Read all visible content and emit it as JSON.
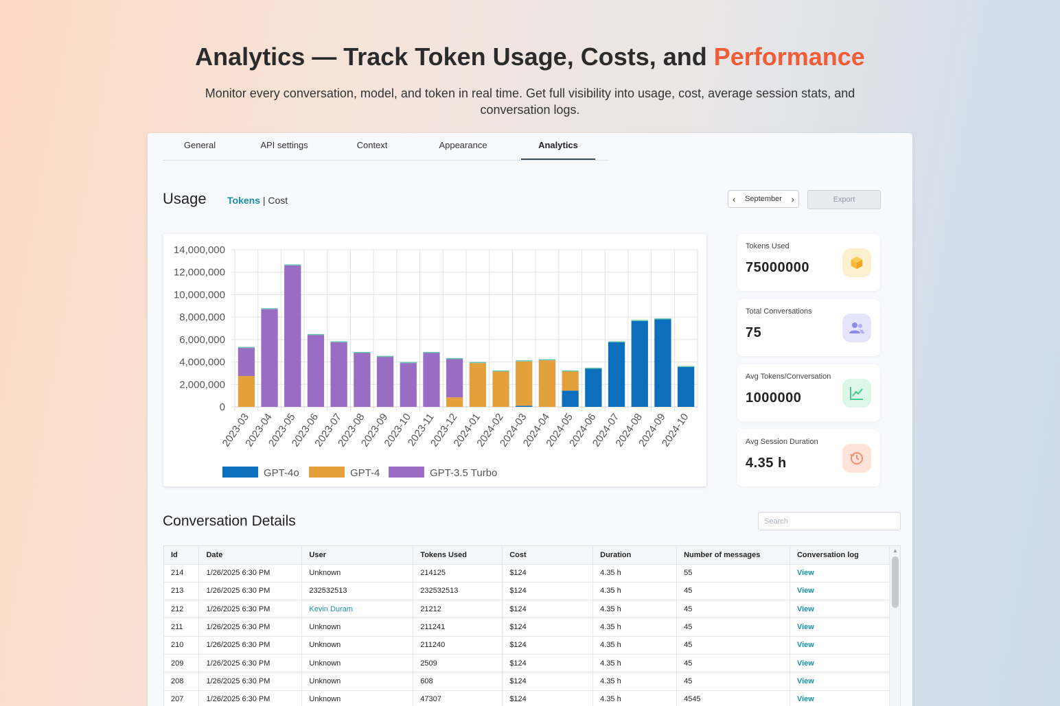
{
  "hero": {
    "title_main": "Analytics — Track Token Usage, Costs, and ",
    "title_accent": "Performance",
    "subtitle": "Monitor every conversation, model, and token in real time. Get full visibility into usage, cost, average session stats, and conversation logs."
  },
  "tabs": [
    {
      "label": "General",
      "active": false
    },
    {
      "label": "API settings",
      "active": false
    },
    {
      "label": "Context",
      "active": false
    },
    {
      "label": "Appearance",
      "active": false
    },
    {
      "label": "Analytics",
      "active": true
    }
  ],
  "usage": {
    "title": "Usage",
    "toggle_tokens": "Tokens",
    "separator": "|",
    "toggle_cost": "Cost",
    "month": "September",
    "export_label": "Export"
  },
  "stats": [
    {
      "label": "Tokens Used",
      "value": "75000000",
      "icon": "cube-icon",
      "icon_bg": "#fdf0cf",
      "icon_color": "#f5c043"
    },
    {
      "label": "Total Conversations",
      "value": "75",
      "icon": "users-icon",
      "icon_bg": "#e4e4fb",
      "icon_color": "#8e8bee"
    },
    {
      "label": "Avg Tokens/Conversation",
      "value": "1000000",
      "icon": "trend-chart-icon",
      "icon_bg": "#dcf6e8",
      "icon_color": "#46c98b"
    },
    {
      "label": "Avg Session Duration",
      "value": "4.35 h",
      "icon": "clock-history-icon",
      "icon_bg": "#fde3da",
      "icon_color": "#f4906f"
    }
  ],
  "chart_data": {
    "type": "bar",
    "stacked": true,
    "categories": [
      "2023-03",
      "2023-04",
      "2023-05",
      "2023-06",
      "2023-07",
      "2023-08",
      "2023-09",
      "2023-10",
      "2023-11",
      "2023-12",
      "2024-01",
      "2024-02",
      "2024-03",
      "2024-04",
      "2024-05",
      "2024-06",
      "2024-07",
      "2024-08",
      "2024-09",
      "2024-10"
    ],
    "series": [
      {
        "name": "GPT-4o",
        "color": "#0b6fbd",
        "values": [
          0,
          0,
          0,
          0,
          0,
          0,
          0,
          0,
          0,
          0,
          0,
          0,
          100000,
          0,
          1450000,
          3400000,
          5750000,
          7650000,
          7800000,
          3550000
        ]
      },
      {
        "name": "GPT-4",
        "color": "#e4a03c",
        "values": [
          2750000,
          0,
          0,
          0,
          0,
          0,
          0,
          0,
          0,
          850000,
          3900000,
          3150000,
          3950000,
          4150000,
          1700000,
          0,
          0,
          0,
          0,
          0
        ]
      },
      {
        "name": "GPT-3.5 Turbo",
        "color": "#9a6dc4",
        "values": [
          2500000,
          8700000,
          12600000,
          6400000,
          5750000,
          4800000,
          4450000,
          3900000,
          4800000,
          3400000,
          0,
          0,
          0,
          0,
          0,
          0,
          0,
          0,
          0,
          0
        ]
      }
    ],
    "ylim": [
      0,
      14000000
    ],
    "yticks": [
      "14,000,000",
      "12,000,000",
      "10,000,000",
      "8,000,000",
      "6,000,000",
      "4,000,000",
      "2,000,000",
      "0"
    ],
    "grid": true,
    "legend": "bottom"
  },
  "details": {
    "title": "Conversation Details",
    "search_placeholder": "Search",
    "columns": [
      "Id",
      "Date",
      "User",
      "Tokens Used",
      "Cost",
      "Duration",
      "Number of messages",
      "Conversation log"
    ],
    "rows": [
      {
        "id": "214",
        "date": "1/26/2025 6:30 PM",
        "user": "Unknown",
        "tokens": "214125",
        "cost": "$124",
        "duration": "4.35 h",
        "messages": "55",
        "log": "View"
      },
      {
        "id": "213",
        "date": "1/26/2025 6:30 PM",
        "user": "232532513",
        "tokens": "232532513",
        "cost": "$124",
        "duration": "4.35 h",
        "messages": "45",
        "log": "View"
      },
      {
        "id": "212",
        "date": "1/26/2025 6:30 PM",
        "user": "Kevin Duram",
        "user_link": true,
        "tokens": "21212",
        "cost": "$124",
        "duration": "4.35 h",
        "messages": "45",
        "log": "View"
      },
      {
        "id": "211",
        "date": "1/26/2025 6:30 PM",
        "user": "Unknown",
        "tokens": "211241",
        "cost": "$124",
        "duration": "4.35 h",
        "messages": "45",
        "log": "View"
      },
      {
        "id": "210",
        "date": "1/26/2025 6:30 PM",
        "user": "Unknown",
        "tokens": "211240",
        "cost": "$124",
        "duration": "4.35 h",
        "messages": "45",
        "log": "View"
      },
      {
        "id": "209",
        "date": "1/26/2025 6:30 PM",
        "user": "Unknown",
        "tokens": "2509",
        "cost": "$124",
        "duration": "4.35 h",
        "messages": "45",
        "log": "View"
      },
      {
        "id": "208",
        "date": "1/26/2025 6:30 PM",
        "user": "Unknown",
        "tokens": "608",
        "cost": "$124",
        "duration": "4.35 h",
        "messages": "45",
        "log": "View"
      },
      {
        "id": "207",
        "date": "1/26/2025 6:30 PM",
        "user": "Unknown",
        "tokens": "47307",
        "cost": "$124",
        "duration": "4.35 h",
        "messages": "4545",
        "log": "View"
      }
    ]
  }
}
